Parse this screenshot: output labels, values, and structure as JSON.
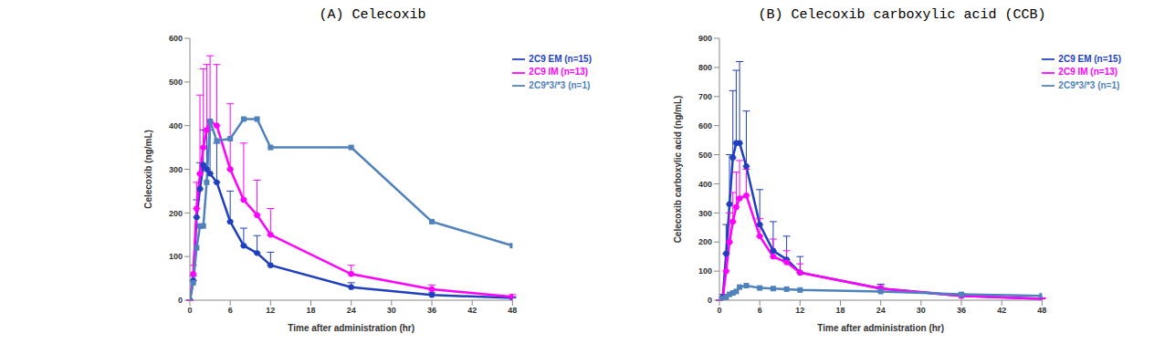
{
  "chart_data": [
    {
      "type": "line",
      "title": "(A) Celecoxib",
      "x_label": "Time after administration (hr)",
      "y_label": "Celecoxib (ng/mL)",
      "x": [
        0,
        0.5,
        1,
        1.5,
        2,
        2.5,
        3,
        4,
        6,
        8,
        10,
        12,
        24,
        36,
        48
      ],
      "xlim": [
        0,
        48
      ],
      "xticks": [
        0,
        6,
        12,
        18,
        24,
        30,
        36,
        42,
        48
      ],
      "ylim": [
        0,
        600
      ],
      "yticks": [
        0,
        100,
        200,
        300,
        400,
        500,
        600
      ],
      "grid": false,
      "legend": "upper right",
      "series": [
        {
          "name": "2C9 EM (n=15)",
          "color": "#1f3fbf",
          "marker": "circle",
          "values": [
            0,
            45,
            190,
            255,
            310,
            300,
            290,
            270,
            180,
            125,
            108,
            80,
            30,
            12,
            5
          ],
          "error": [
            0,
            10,
            40,
            60,
            80,
            90,
            100,
            90,
            70,
            40,
            40,
            30,
            10,
            5,
            3
          ]
        },
        {
          "name": "2C9 IM (n=13)",
          "color": "#ff00ff",
          "marker": "circle",
          "values": [
            0,
            60,
            210,
            290,
            350,
            390,
            410,
            400,
            300,
            230,
            195,
            150,
            60,
            25,
            8
          ],
          "error": [
            0,
            20,
            60,
            180,
            180,
            150,
            150,
            140,
            150,
            130,
            80,
            60,
            20,
            10,
            5
          ]
        },
        {
          "name": "2C9*3/*3 (n=1)",
          "color": "#4f81bd",
          "marker": "square",
          "values": [
            0,
            40,
            120,
            170,
            170,
            270,
            410,
            365,
            370,
            415,
            415,
            350,
            350,
            180,
            125
          ]
        }
      ]
    },
    {
      "type": "line",
      "title": "(B) Celecoxib carboxylic acid (CCB)",
      "x_label": "Time after administration (hr)",
      "y_label": "Celecoxib carboxylic acid (ng/mL)",
      "x": [
        0,
        0.5,
        1,
        1.5,
        2,
        2.5,
        3,
        4,
        6,
        8,
        10,
        12,
        24,
        36,
        48
      ],
      "xlim": [
        0,
        48
      ],
      "xticks": [
        0,
        6,
        12,
        18,
        24,
        30,
        36,
        42,
        48
      ],
      "ylim": [
        0,
        900
      ],
      "yticks": [
        0,
        100,
        200,
        300,
        400,
        500,
        600,
        700,
        800,
        900
      ],
      "grid": false,
      "legend": "upper right",
      "series": [
        {
          "name": "2C9 EM (n=15)",
          "color": "#1f3fbf",
          "marker": "circle",
          "values": [
            0,
            10,
            160,
            330,
            490,
            540,
            540,
            460,
            260,
            170,
            140,
            95,
            40,
            15,
            5
          ],
          "error": [
            0,
            10,
            100,
            170,
            230,
            250,
            280,
            190,
            120,
            100,
            80,
            55,
            15,
            8,
            3
          ]
        },
        {
          "name": "2C9 IM (n=13)",
          "color": "#ff00ff",
          "marker": "circle",
          "values": [
            0,
            5,
            100,
            200,
            270,
            320,
            350,
            360,
            220,
            150,
            130,
            95,
            40,
            15,
            5
          ],
          "error": [
            0,
            5,
            60,
            100,
            100,
            120,
            130,
            90,
            60,
            60,
            40,
            30,
            10,
            5,
            3
          ]
        },
        {
          "name": "2C9*3/*3 (n=1)",
          "color": "#4f81bd",
          "marker": "square",
          "values": [
            0,
            5,
            10,
            20,
            25,
            30,
            45,
            50,
            42,
            40,
            38,
            35,
            30,
            20,
            15
          ]
        }
      ]
    }
  ]
}
